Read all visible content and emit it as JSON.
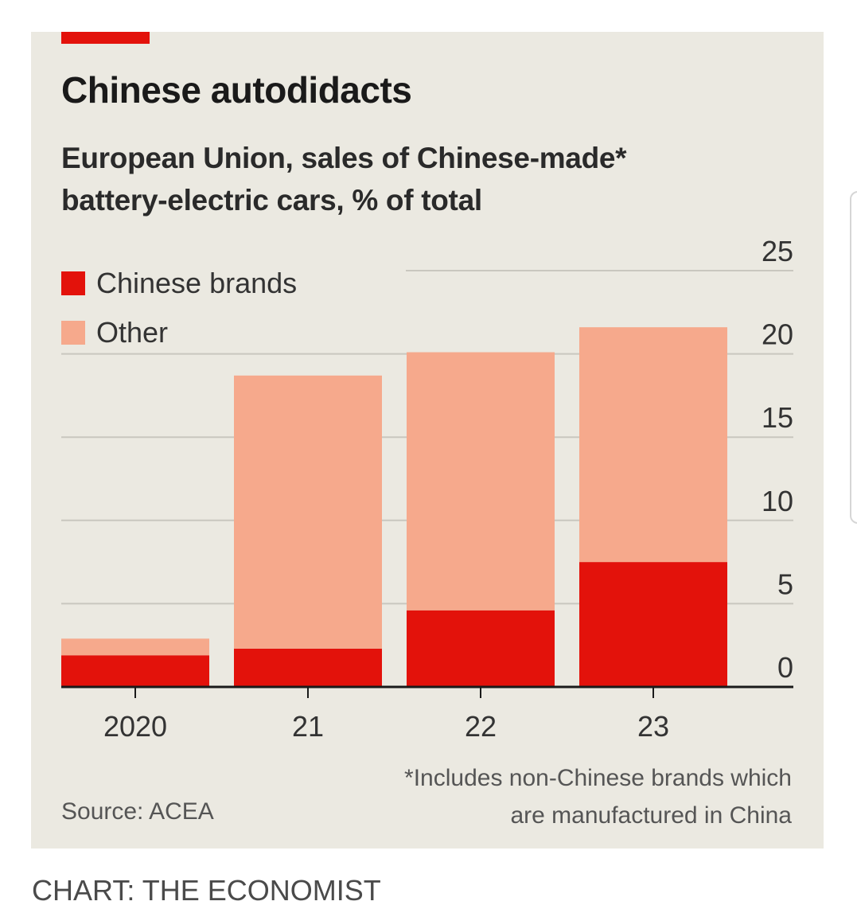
{
  "chart_data": {
    "type": "bar",
    "stacked": true,
    "title": "Chinese autodidacts",
    "subtitle": "European Union, sales of Chinese-made* battery-electric cars, % of total",
    "categories": [
      "2020",
      "21",
      "22",
      "23"
    ],
    "series": [
      {
        "name": "Chinese brands",
        "color": "#e3120b",
        "values": [
          1.9,
          2.3,
          4.6,
          7.5
        ]
      },
      {
        "name": "Other",
        "color": "#f6a98c",
        "values": [
          1.0,
          16.4,
          15.5,
          14.1
        ]
      }
    ],
    "totals": [
      2.9,
      18.7,
      20.1,
      21.6
    ],
    "ylim": [
      0,
      25
    ],
    "yticks": [
      "0",
      "5",
      "10",
      "15",
      "20",
      "25"
    ],
    "y_axis_side": "right",
    "grid": true,
    "legend_position": "top-left",
    "xlabel": "",
    "ylabel": "",
    "footnote": "*Includes non-Chinese brands which are manufactured in China",
    "source": "Source: ACEA"
  },
  "credit": "CHART: THE ECONOMIST",
  "colors": {
    "accent": "#e3120b",
    "background": "#ebe9e1",
    "grid": "#c9c7bf"
  }
}
